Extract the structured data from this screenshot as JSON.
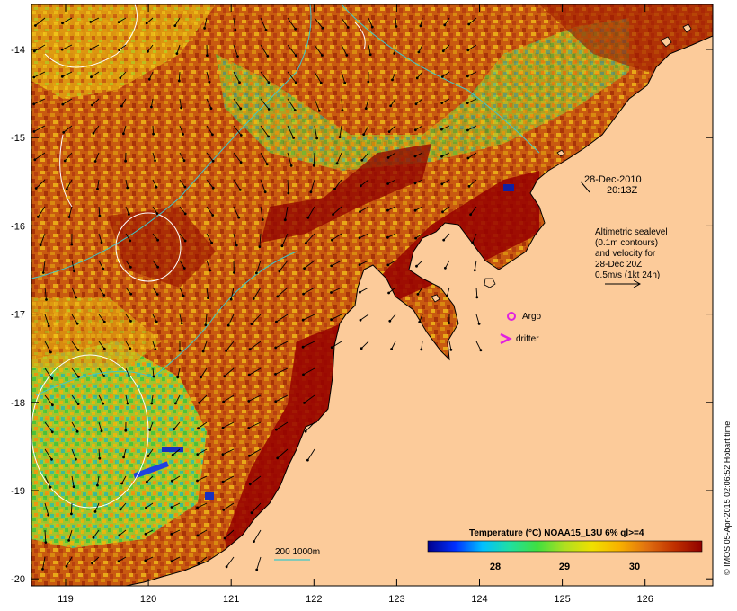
{
  "map": {
    "date_label": "28-Dec-2010",
    "time_label": "20:13Z",
    "altimetry_note": [
      "Altimetric sealevel",
      "(0.1m contours)",
      "and velocity for",
      "28-Dec 20Z",
      "0.5m/s (1kt 24h)"
    ],
    "argo_label": "Argo",
    "drifter_label": "drifter",
    "isobath_label": "200  1000m",
    "credit": "© IMOS 05-Apr-2015 02:06:52 Hobart time",
    "colors": {
      "land": "#fccb9a",
      "argo": "#e020e0",
      "drifter": "#e020e0",
      "isobath": "#40c8c8",
      "contour": "#ffffff"
    }
  },
  "axes": {
    "x_ticks": [
      "119",
      "120",
      "121",
      "122",
      "123",
      "124",
      "125",
      "126"
    ],
    "y_ticks": [
      "-14",
      "-15",
      "-16",
      "-17",
      "-18",
      "-19",
      "-20"
    ]
  },
  "legend": {
    "title": "Temperature (°C) NOAA15_L3U 6% ql>=4",
    "ticks": [
      "28",
      "29",
      "30"
    ],
    "colors": [
      "#00008b",
      "#0030ff",
      "#00c0ff",
      "#20e0a0",
      "#40e040",
      "#b0e020",
      "#f0e000",
      "#f8b000",
      "#e07010",
      "#c03000",
      "#900000"
    ]
  }
}
